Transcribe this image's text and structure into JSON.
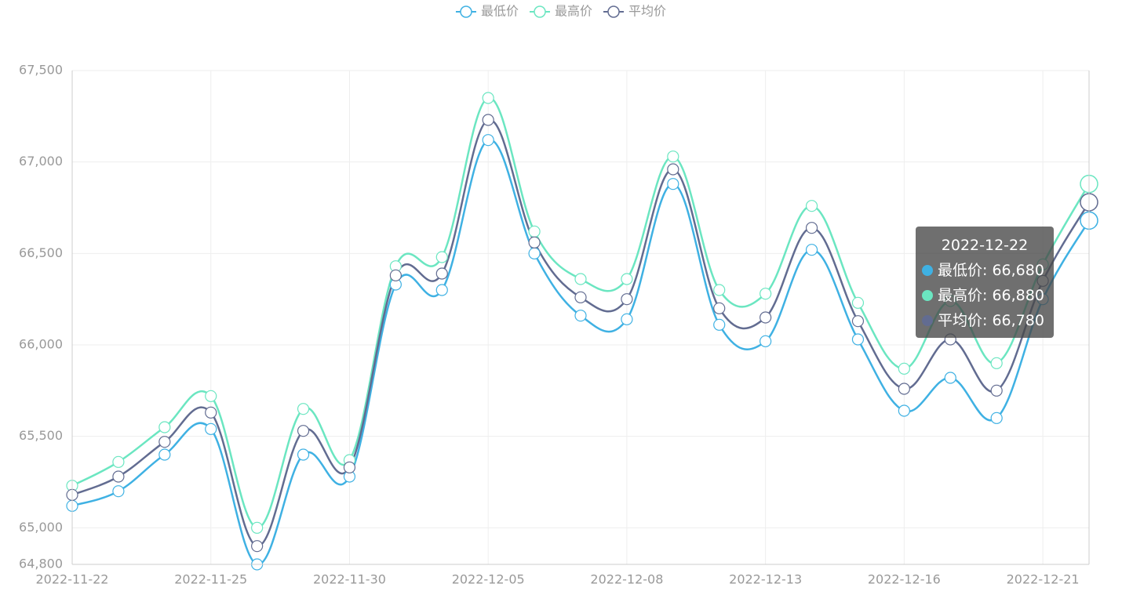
{
  "chart_data": {
    "type": "line",
    "categories": [
      "2022-11-22",
      null,
      null,
      "2022-11-25",
      null,
      null,
      "2022-11-30",
      null,
      null,
      "2022-12-05",
      null,
      null,
      "2022-12-08",
      null,
      null,
      "2022-12-13",
      null,
      null,
      "2022-12-16",
      null,
      null,
      "2022-12-21",
      "2022-12-22"
    ],
    "series": [
      {
        "name": "最低价",
        "color": "#3fb1e3",
        "values": [
          65120,
          65200,
          65400,
          65540,
          64800,
          65400,
          65280,
          66330,
          66300,
          67120,
          66500,
          66160,
          66140,
          66880,
          66110,
          66020,
          66520,
          66030,
          65640,
          65820,
          65600,
          66250,
          66680
        ]
      },
      {
        "name": "最高价",
        "color": "#6be6c1",
        "values": [
          65230,
          65360,
          65550,
          65720,
          65000,
          65650,
          65370,
          66430,
          66480,
          67350,
          66620,
          66360,
          66360,
          67030,
          66300,
          66280,
          66760,
          66230,
          65870,
          66240,
          65900,
          66440,
          66880
        ]
      },
      {
        "name": "平均价",
        "color": "#626c91",
        "values": [
          65180,
          65280,
          65470,
          65630,
          64900,
          65530,
          65330,
          66380,
          66390,
          67230,
          66560,
          66260,
          66250,
          66960,
          66200,
          66150,
          66640,
          66130,
          65760,
          66030,
          65750,
          66350,
          66780
        ]
      }
    ],
    "ylim": [
      64800,
      67500
    ],
    "yticks": [
      {
        "value": 64800,
        "label": "64,800"
      },
      {
        "value": 65000,
        "label": "65,000"
      },
      {
        "value": 65500,
        "label": "65,500"
      },
      {
        "value": 66000,
        "label": "66,000"
      },
      {
        "value": 66500,
        "label": "66,500"
      },
      {
        "value": 67000,
        "label": "67,000"
      },
      {
        "value": 67500,
        "label": "67,500"
      }
    ],
    "grid": true,
    "smooth": true,
    "legend": "top",
    "tooltip": [
      "最低价: 66,680",
      "最高价: 66,880",
      "平均价: 66,780"
    ]
  }
}
